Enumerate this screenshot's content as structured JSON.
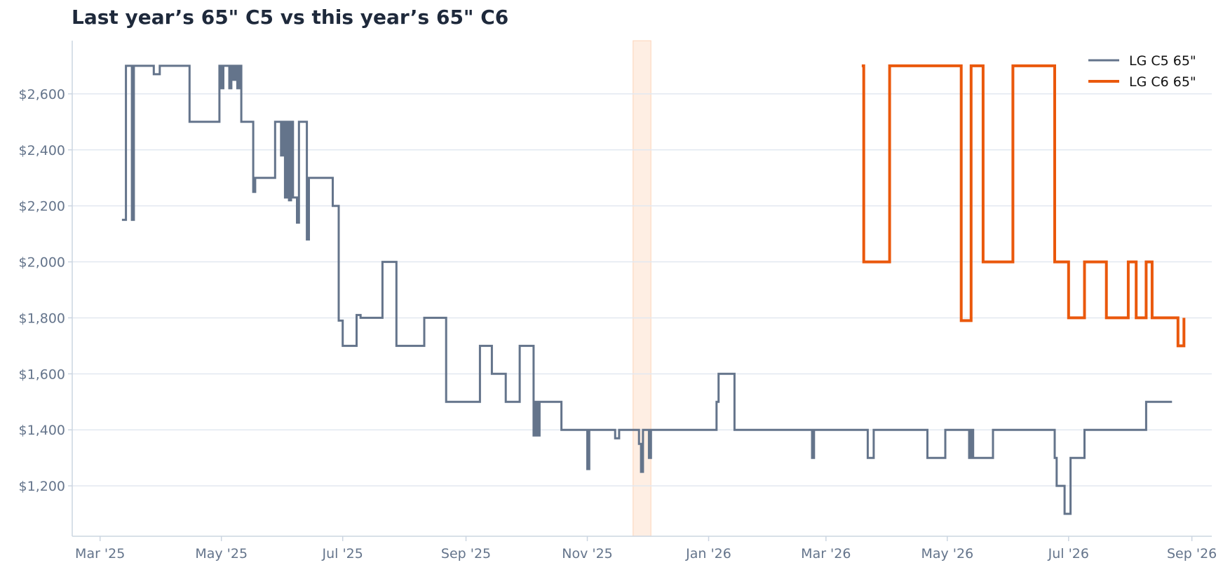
{
  "chart_data": {
    "type": "line",
    "step": true,
    "title": "Last year’s 65\" C5 vs this year’s 65\" C6",
    "xlabel": "",
    "ylabel": "",
    "x_ticks": [
      {
        "label": "Mar '25",
        "date": "2025-03-01"
      },
      {
        "label": "May '25",
        "date": "2025-05-01"
      },
      {
        "label": "Jul '25",
        "date": "2025-07-01"
      },
      {
        "label": "Sep '25",
        "date": "2025-09-01"
      },
      {
        "label": "Nov '25",
        "date": "2025-11-01"
      },
      {
        "label": "Jan '26",
        "date": "2026-01-01"
      },
      {
        "label": "Mar '26",
        "date": "2026-03-01"
      },
      {
        "label": "May '26",
        "date": "2026-05-01"
      },
      {
        "label": "Jul '26",
        "date": "2026-07-01"
      },
      {
        "label": "Sep '26",
        "date": "2026-09-01"
      }
    ],
    "xlim": [
      "2025-02-15",
      "2026-09-11"
    ],
    "y_ticks": [
      {
        "label": "$1,200",
        "value": 1200
      },
      {
        "label": "$1,400",
        "value": 1400
      },
      {
        "label": "$1,600",
        "value": 1600
      },
      {
        "label": "$1,800",
        "value": 1800
      },
      {
        "label": "$2,000",
        "value": 2000
      },
      {
        "label": "$2,200",
        "value": 2200
      },
      {
        "label": "$2,400",
        "value": 2400
      },
      {
        "label": "$2,600",
        "value": 2600
      }
    ],
    "ylim": [
      1020,
      2790
    ],
    "grid": "horizontal",
    "legend_position": "top-right",
    "highlight_band": {
      "start": "2025-11-24",
      "end": "2025-12-03",
      "color": "#f97316"
    },
    "series": [
      {
        "name": "LG C5 65\"",
        "color": "#64748b",
        "points": [
          [
            "2025-03-12",
            2150
          ],
          [
            "2025-03-14",
            2700
          ],
          [
            "2025-03-17",
            2150
          ],
          [
            "2025-03-18",
            2700
          ],
          [
            "2025-03-28",
            2670
          ],
          [
            "2025-03-31",
            2700
          ],
          [
            "2025-04-15",
            2500
          ],
          [
            "2025-05-00",
            2700
          ],
          [
            "2025-05-01",
            2620
          ],
          [
            "2025-05-02",
            2700
          ],
          [
            "2025-05-05",
            2620
          ],
          [
            "2025-05-06",
            2700
          ],
          [
            "2025-05-07",
            2650
          ],
          [
            "2025-05-08",
            2700
          ],
          [
            "2025-05-09",
            2620
          ],
          [
            "2025-05-10",
            2700
          ],
          [
            "2025-05-11",
            2500
          ],
          [
            "2025-05-17",
            2250
          ],
          [
            "2025-05-18",
            2300
          ],
          [
            "2025-05-28",
            2500
          ],
          [
            "2025-05-31",
            2380
          ],
          [
            "2025-06-01",
            2500
          ],
          [
            "2025-06-02",
            2230
          ],
          [
            "2025-06-03",
            2500
          ],
          [
            "2025-06-04",
            2220
          ],
          [
            "2025-06-05",
            2500
          ],
          [
            "2025-06-06",
            2230
          ],
          [
            "2025-06-08",
            2140
          ],
          [
            "2025-06-09",
            2500
          ],
          [
            "2025-06-13",
            2080
          ],
          [
            "2025-06-14",
            2300
          ],
          [
            "2025-06-26",
            2200
          ],
          [
            "2025-06-29",
            1790
          ],
          [
            "2025-07-01",
            1700
          ],
          [
            "2025-07-08",
            1810
          ],
          [
            "2025-07-10",
            1800
          ],
          [
            "2025-07-12",
            1800
          ],
          [
            "2025-07-21",
            2000
          ],
          [
            "2025-07-28",
            1700
          ],
          [
            "2025-08-11",
            1800
          ],
          [
            "2025-08-22",
            1500
          ],
          [
            "2025-09-08",
            1700
          ],
          [
            "2025-09-14",
            1600
          ],
          [
            "2025-09-21",
            1500
          ],
          [
            "2025-09-28",
            1700
          ],
          [
            "2025-10-05",
            1380
          ],
          [
            "2025-10-06",
            1500
          ],
          [
            "2025-10-07",
            1380
          ],
          [
            "2025-10-08",
            1500
          ],
          [
            "2025-10-19",
            1400
          ],
          [
            "2025-11-01",
            1260
          ],
          [
            "2025-11-02",
            1400
          ],
          [
            "2025-11-15",
            1370
          ],
          [
            "2025-11-17",
            1400
          ],
          [
            "2025-11-27",
            1350
          ],
          [
            "2025-11-28",
            1250
          ],
          [
            "2025-11-29",
            1400
          ],
          [
            "2025-12-02",
            1300
          ],
          [
            "2025-12-03",
            1400
          ],
          [
            "2026-01-05",
            1500
          ],
          [
            "2026-01-06",
            1600
          ],
          [
            "2026-01-14",
            1400
          ],
          [
            "2026-02-22",
            1300
          ],
          [
            "2026-02-23",
            1400
          ],
          [
            "2026-03-22",
            1300
          ],
          [
            "2026-03-25",
            1400
          ],
          [
            "2026-04-21",
            1300
          ],
          [
            "2026-04-28",
            1300
          ],
          [
            "2026-04-30",
            1400
          ],
          [
            "2026-05-12",
            1300
          ],
          [
            "2026-05-13",
            1400
          ],
          [
            "2026-05-14",
            1300
          ],
          [
            "2026-05-24",
            1400
          ],
          [
            "2026-06-24",
            1300
          ],
          [
            "2026-06-25",
            1200
          ],
          [
            "2026-06-29",
            1100
          ],
          [
            "2026-07-02",
            1300
          ],
          [
            "2026-07-09",
            1400
          ],
          [
            "2026-07-16",
            1400
          ],
          [
            "2026-08-05",
            1400
          ],
          [
            "2026-08-09",
            1500
          ],
          [
            "2026-08-22",
            1500
          ]
        ]
      },
      {
        "name": "LG C6 65\"",
        "color": "#ea580c",
        "points": [
          [
            "2026-03-19",
            2700
          ],
          [
            "2026-03-20",
            2000
          ],
          [
            "2026-04-02",
            2700
          ],
          [
            "2026-04-19",
            2700
          ],
          [
            "2026-05-08",
            1790
          ],
          [
            "2026-05-13",
            2700
          ],
          [
            "2026-05-19",
            2000
          ],
          [
            "2026-06-03",
            2700
          ],
          [
            "2026-06-24",
            2000
          ],
          [
            "2026-07-01",
            1800
          ],
          [
            "2026-07-09",
            2000
          ],
          [
            "2026-07-20",
            1800
          ],
          [
            "2026-07-31",
            2000
          ],
          [
            "2026-08-04",
            1800
          ],
          [
            "2026-08-09",
            2000
          ],
          [
            "2026-08-12",
            1800
          ],
          [
            "2026-08-25",
            1700
          ],
          [
            "2026-08-28",
            1800
          ]
        ]
      }
    ]
  }
}
